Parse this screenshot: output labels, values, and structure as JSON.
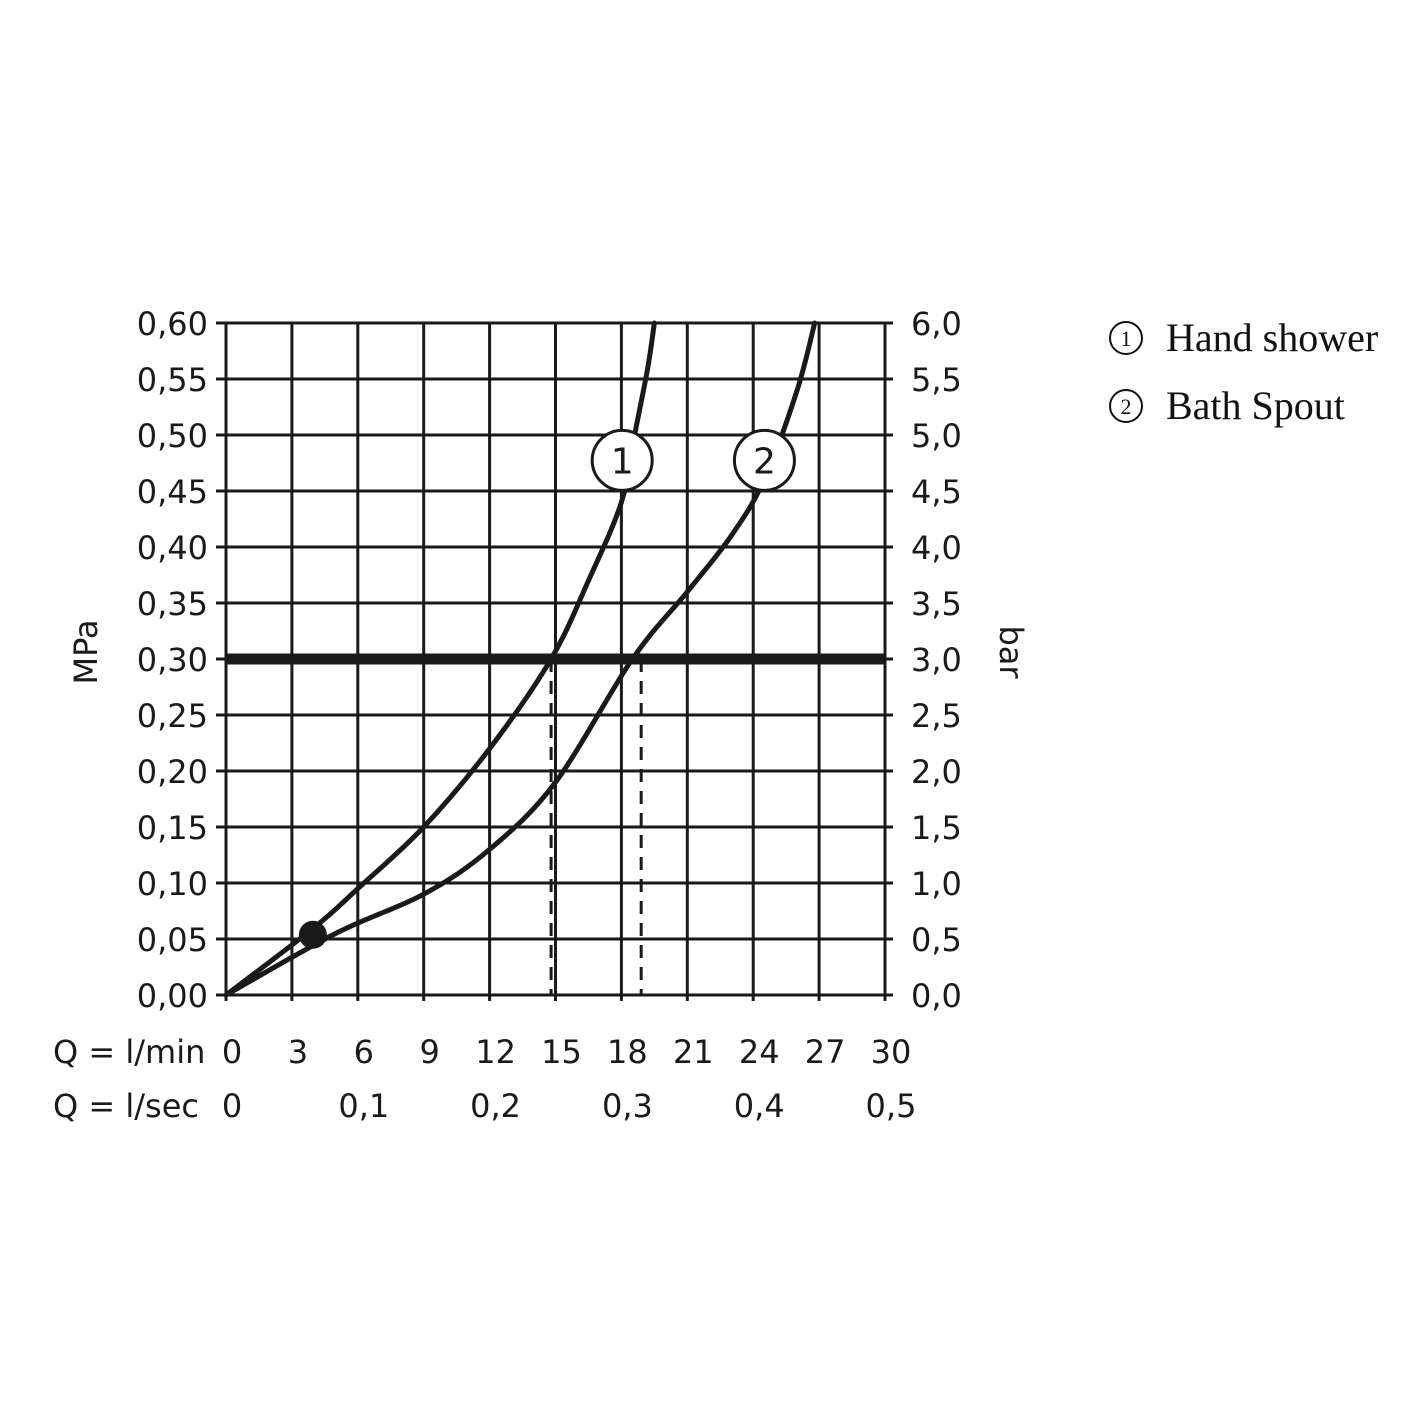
{
  "chart_data": {
    "type": "line",
    "ylabel_left": "MPa",
    "ylabel_right": "bar",
    "xlabel_row1": "Q = l/min",
    "xlabel_row2": "Q = l/sec",
    "xlim": [
      0,
      30
    ],
    "ylim": [
      0,
      0.6
    ],
    "x_ticks_lmin": [
      "0",
      "3",
      "6",
      "9",
      "12",
      "15",
      "18",
      "21",
      "24",
      "27",
      "30"
    ],
    "x_ticks_lsec": [
      {
        "value": 0,
        "label": "0"
      },
      {
        "value": 6,
        "label": "0,1"
      },
      {
        "value": 12,
        "label": "0,2"
      },
      {
        "value": 18,
        "label": "0,3"
      },
      {
        "value": 24,
        "label": "0,4"
      },
      {
        "value": 30,
        "label": "0,5"
      }
    ],
    "y_ticks_left": [
      "0,00",
      "0,05",
      "0,10",
      "0,15",
      "0,20",
      "0,25",
      "0,30",
      "0,35",
      "0,40",
      "0,45",
      "0,50",
      "0,55",
      "0,60"
    ],
    "y_ticks_right": [
      "0,0",
      "0,5",
      "1,0",
      "1,5",
      "2,0",
      "2,5",
      "3,0",
      "3,5",
      "4,0",
      "4,5",
      "5,0",
      "5,5",
      "6,0"
    ],
    "grid": true,
    "reference_line": {
      "y": 0.3
    },
    "series": [
      {
        "name": "1",
        "label_marker": "1",
        "x": [
          0,
          4,
          6,
          9,
          12,
          14.8,
          16.5,
          18,
          18.6,
          19.2,
          19.5
        ],
        "y": [
          0,
          0.06,
          0.095,
          0.15,
          0.22,
          0.3,
          0.37,
          0.44,
          0.5,
          0.56,
          0.6
        ],
        "dashed_drop_x": 14.8
      },
      {
        "name": "2",
        "label_marker": "2",
        "x": [
          0,
          5,
          9,
          12,
          15,
          18.5,
          21,
          23,
          24.5,
          26,
          26.8
        ],
        "y": [
          0,
          0.055,
          0.09,
          0.13,
          0.19,
          0.3,
          0.36,
          0.41,
          0.46,
          0.54,
          0.6
        ],
        "dashed_drop_x": 18.9
      }
    ],
    "marker_point": {
      "x": 4,
      "y": 0.06
    }
  },
  "legend": [
    {
      "num": "1",
      "label": "Hand shower"
    },
    {
      "num": "2",
      "label": "Bath Spout"
    }
  ]
}
